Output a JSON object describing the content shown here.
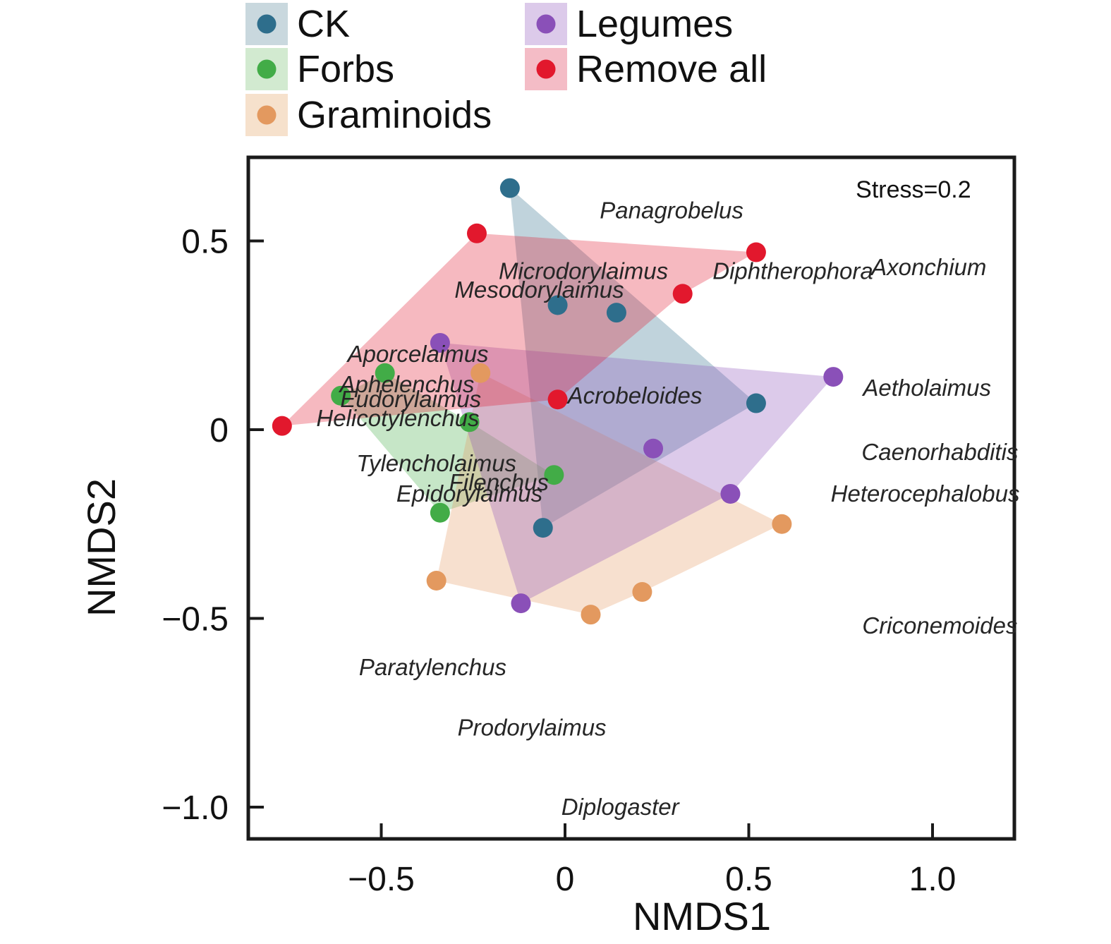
{
  "figure": {
    "background": "#ffffff"
  },
  "legend": {
    "items": [
      {
        "label": "CK",
        "dot_color": "#2e6e8c",
        "swatch_bg": "#c9d8de",
        "row": 0,
        "col": 0
      },
      {
        "label": "Forbs",
        "dot_color": "#42ac47",
        "swatch_bg": "#d2ead0",
        "row": 1,
        "col": 0
      },
      {
        "label": "Graminoids",
        "dot_color": "#e3995f",
        "swatch_bg": "#f6e1cc",
        "row": 2,
        "col": 0
      },
      {
        "label": "Legumes",
        "dot_color": "#8a50b8",
        "swatch_bg": "#dccaea",
        "row": 0,
        "col": 1
      },
      {
        "label": "Remove all",
        "dot_color": "#e2182d",
        "swatch_bg": "#f4bcc6",
        "row": 1,
        "col": 1
      }
    ]
  },
  "chart_data": {
    "type": "scatter",
    "xlabel": "NMDS1",
    "ylabel": "NMDS2",
    "xlim": [
      -0.86,
      1.22
    ],
    "ylim": [
      -1.08,
      0.72
    ],
    "grid": false,
    "legend_position": "top-left-outside",
    "annotation": {
      "text": "Stress=0.2",
      "x": 0.948,
      "y": 0.637
    },
    "x_ticks": [
      -0.5,
      0,
      0.5,
      1.0
    ],
    "x_tick_labels": [
      "−0.5",
      "0",
      "0.5",
      "1.0"
    ],
    "y_ticks": [
      0.5,
      0,
      -0.5,
      -1.0
    ],
    "y_tick_labels": [
      "0.5",
      "0",
      "−0.5",
      "−1.0"
    ],
    "hull_opacity": 0.3,
    "series": [
      {
        "name": "CK",
        "color": "#2e6e8c",
        "points": [
          [
            -0.15,
            0.64
          ],
          [
            -0.02,
            0.33
          ],
          [
            0.14,
            0.31
          ],
          [
            0.52,
            0.07
          ],
          [
            -0.06,
            -0.26
          ]
        ],
        "hull": [
          [
            -0.15,
            0.64
          ],
          [
            0.52,
            0.07
          ],
          [
            -0.06,
            -0.26
          ]
        ]
      },
      {
        "name": "Forbs",
        "color": "#42ac47",
        "points": [
          [
            -0.49,
            0.15
          ],
          [
            -0.61,
            0.09
          ],
          [
            -0.26,
            0.02
          ],
          [
            -0.03,
            -0.12
          ],
          [
            -0.34,
            -0.22
          ]
        ],
        "hull": [
          [
            -0.61,
            0.09
          ],
          [
            -0.49,
            0.15
          ],
          [
            -0.26,
            0.02
          ],
          [
            -0.03,
            -0.12
          ],
          [
            -0.34,
            -0.22
          ]
        ]
      },
      {
        "name": "Graminoids",
        "color": "#e3995f",
        "points": [
          [
            -0.23,
            0.15
          ],
          [
            -0.35,
            -0.4
          ],
          [
            0.07,
            -0.49
          ],
          [
            0.21,
            -0.43
          ],
          [
            0.59,
            -0.25
          ]
        ],
        "hull": [
          [
            -0.23,
            0.15
          ],
          [
            0.59,
            -0.25
          ],
          [
            0.21,
            -0.43
          ],
          [
            0.07,
            -0.49
          ],
          [
            -0.35,
            -0.4
          ]
        ]
      },
      {
        "name": "Legumes",
        "color": "#8a50b8",
        "points": [
          [
            -0.34,
            0.23
          ],
          [
            0.73,
            0.14
          ],
          [
            0.24,
            -0.05
          ],
          [
            0.45,
            -0.17
          ],
          [
            -0.12,
            -0.46
          ]
        ],
        "hull": [
          [
            -0.34,
            0.23
          ],
          [
            0.73,
            0.14
          ],
          [
            0.45,
            -0.17
          ],
          [
            -0.12,
            -0.46
          ]
        ]
      },
      {
        "name": "Remove all",
        "color": "#e2182d",
        "points": [
          [
            -0.77,
            0.01
          ],
          [
            -0.24,
            0.52
          ],
          [
            0.52,
            0.47
          ],
          [
            0.32,
            0.36
          ],
          [
            -0.02,
            0.08
          ]
        ],
        "hull": [
          [
            -0.77,
            0.01
          ],
          [
            -0.24,
            0.52
          ],
          [
            0.52,
            0.47
          ],
          [
            0.32,
            0.36
          ],
          [
            -0.02,
            0.08
          ]
        ]
      }
    ],
    "genus_labels": [
      {
        "text": "Panagrobelus",
        "x": 0.29,
        "y": 0.58
      },
      {
        "text": "Microdorylaimus",
        "x": 0.05,
        "y": 0.42
      },
      {
        "text": "Mesodorylaimus",
        "x": -0.07,
        "y": 0.37
      },
      {
        "text": "Diphtherophora",
        "x": 0.62,
        "y": 0.42
      },
      {
        "text": "Axonchium",
        "x": 0.99,
        "y": 0.43
      },
      {
        "text": "Aporcelaimus",
        "x": -0.4,
        "y": 0.2
      },
      {
        "text": "Aphelenchus",
        "x": -0.43,
        "y": 0.12
      },
      {
        "text": "Eudorylaimus",
        "x": -0.42,
        "y": 0.08
      },
      {
        "text": "Helicotylenchus",
        "x": -0.455,
        "y": 0.03
      },
      {
        "text": "Acrobeloides",
        "x": 0.19,
        "y": 0.09
      },
      {
        "text": "Aetholaimus",
        "x": 0.985,
        "y": 0.11
      },
      {
        "text": "Tylencholaimus",
        "x": -0.35,
        "y": -0.09
      },
      {
        "text": "Filenchus",
        "x": -0.18,
        "y": -0.14
      },
      {
        "text": "Epidorylaimus",
        "x": -0.26,
        "y": -0.17
      },
      {
        "text": "Caenorhabditis",
        "x": 1.02,
        "y": -0.06
      },
      {
        "text": "Heterocephalobus",
        "x": 0.98,
        "y": -0.17
      },
      {
        "text": "Criconemoides",
        "x": 1.02,
        "y": -0.52
      },
      {
        "text": "Paratylenchus",
        "x": -0.36,
        "y": -0.63
      },
      {
        "text": "Prodorylaimus",
        "x": -0.09,
        "y": -0.79
      },
      {
        "text": "Diplogaster",
        "x": 0.15,
        "y": -1.0
      }
    ]
  }
}
